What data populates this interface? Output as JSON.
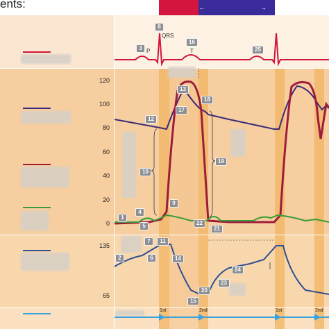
{
  "title": "ents:",
  "labels": {
    "qrs": "QRS",
    "p": "P",
    "t": "T",
    "first": "1st",
    "second": "2nd"
  },
  "yaxis_pressure": [
    "120",
    "100",
    "80",
    "60",
    "40",
    "20",
    "0"
  ],
  "yaxis_volume": [
    "135",
    "65"
  ],
  "numbers": [
    "1",
    "2",
    "3",
    "4",
    "5",
    "6",
    "7",
    "8",
    "9",
    "10",
    "11",
    "12",
    "13",
    "14",
    "15",
    "16",
    "17",
    "18",
    "19",
    "20",
    "21",
    "22",
    "23",
    "24",
    "25"
  ],
  "colors": {
    "bg_left_top": "#fbe6d1",
    "bg_band": "#f6ce9f",
    "bg_band_light": "#fad9b2",
    "stripe": "#f2b766",
    "atrial": "#7ab63a",
    "ventricular": "#9e1b3b",
    "aortic": "#3b2a7a",
    "volume": "#2e4f92",
    "heart_sound": "#3aa2dc",
    "systole_bar": "#d4163f",
    "diastole_bar": "#3a2b9a",
    "ecg": "#d0153b"
  }
}
